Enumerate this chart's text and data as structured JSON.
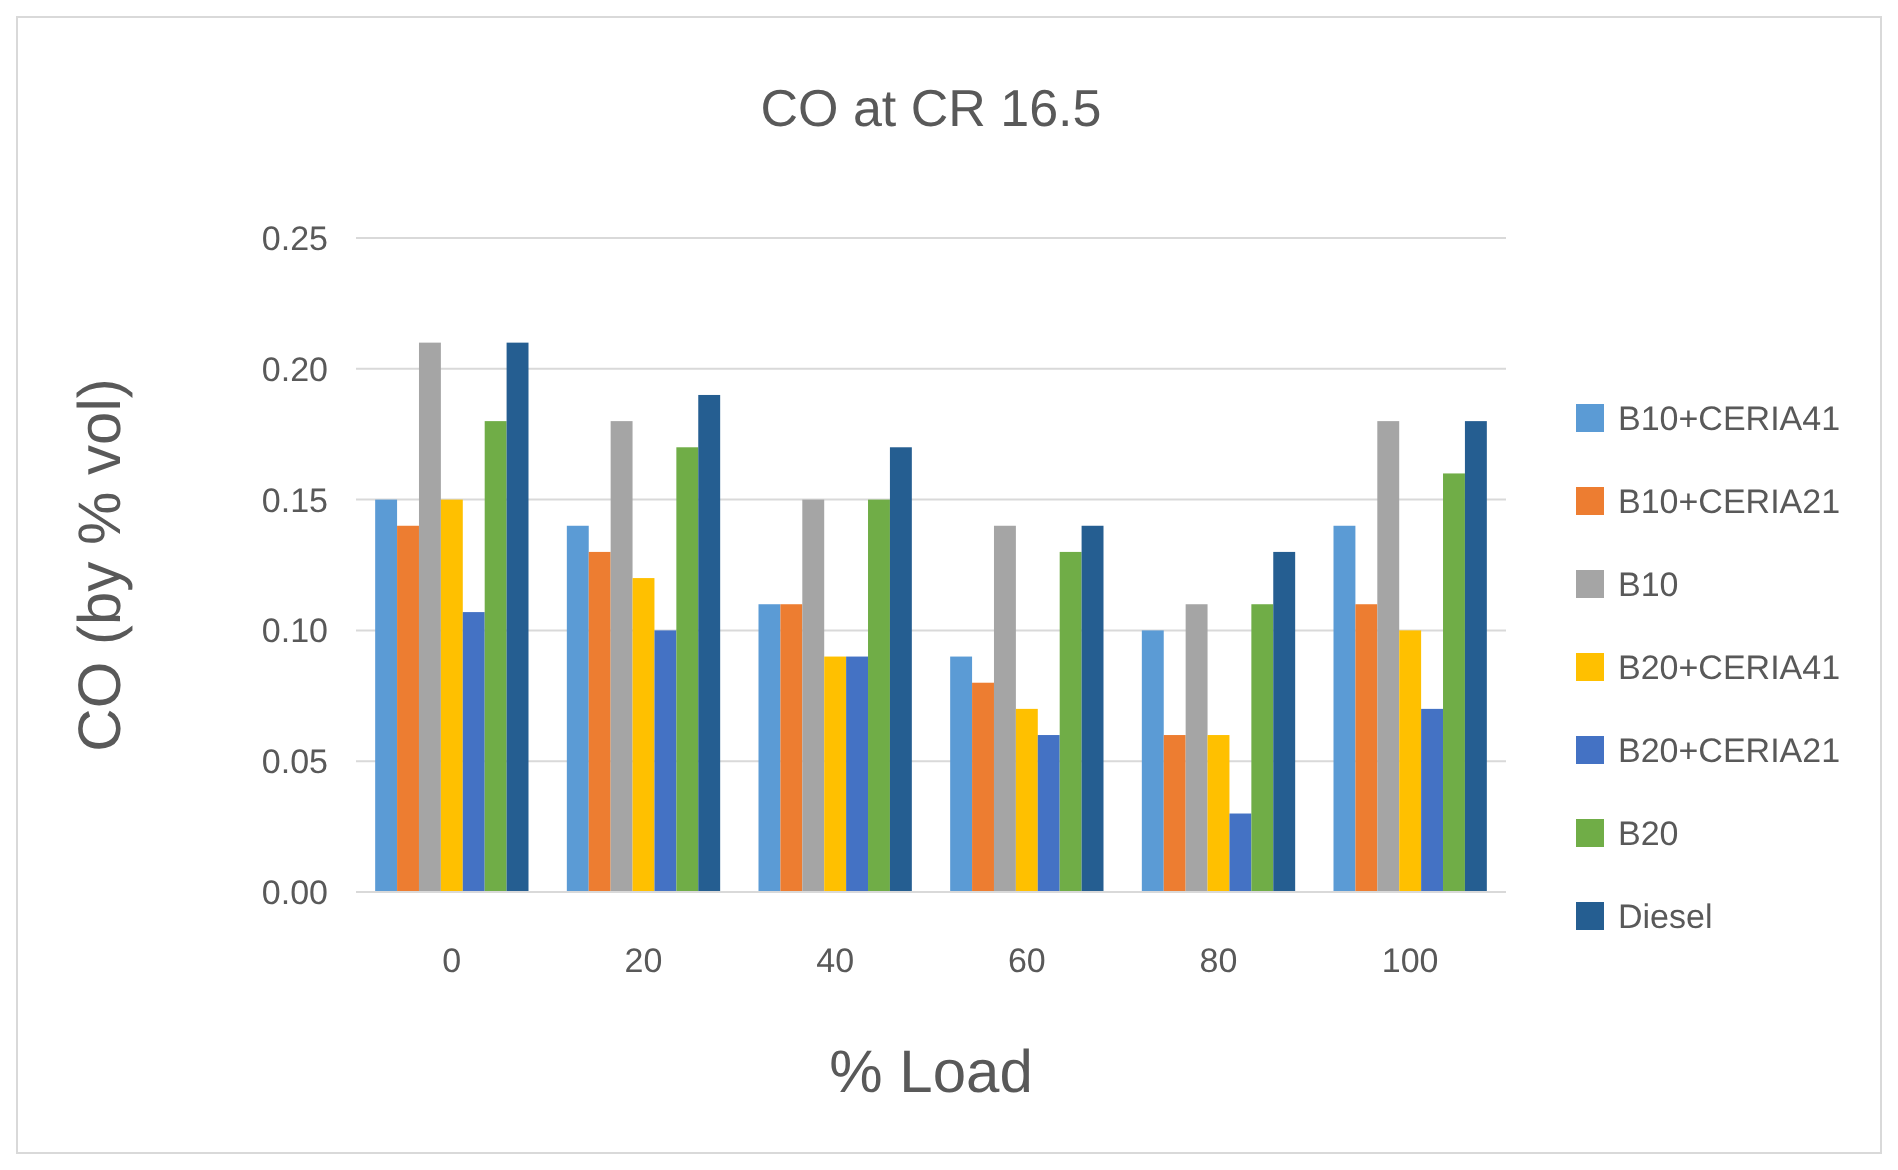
{
  "chart_data": {
    "type": "bar",
    "title": "CO at CR 16.5",
    "xlabel": "% Load",
    "ylabel": "CO (by % vol)",
    "categories": [
      "0",
      "20",
      "40",
      "60",
      "80",
      "100"
    ],
    "series": [
      {
        "name": "B10+CERIA41",
        "color": "#5b9bd5",
        "values": [
          0.15,
          0.14,
          0.11,
          0.09,
          0.1,
          0.14
        ]
      },
      {
        "name": "B10+CERIA21",
        "color": "#ed7d31",
        "values": [
          0.14,
          0.13,
          0.11,
          0.08,
          0.06,
          0.11
        ]
      },
      {
        "name": "B10",
        "color": "#a5a5a5",
        "values": [
          0.21,
          0.18,
          0.15,
          0.14,
          0.11,
          0.18
        ]
      },
      {
        "name": "B20+CERIA41",
        "color": "#ffc000",
        "values": [
          0.15,
          0.12,
          0.09,
          0.07,
          0.06,
          0.1
        ]
      },
      {
        "name": "B20+CERIA21",
        "color": "#4472c4",
        "values": [
          0.107,
          0.1,
          0.09,
          0.06,
          0.03,
          0.07
        ]
      },
      {
        "name": "B20",
        "color": "#70ad47",
        "values": [
          0.18,
          0.17,
          0.15,
          0.13,
          0.11,
          0.16
        ]
      },
      {
        "name": "Diesel",
        "color": "#255e91",
        "values": [
          0.21,
          0.19,
          0.17,
          0.14,
          0.13,
          0.18
        ]
      }
    ],
    "ylim": [
      0,
      0.25
    ],
    "yticks": [
      {
        "value": 0,
        "label": "0.00"
      },
      {
        "value": 0.05,
        "label": "0.05"
      },
      {
        "value": 0.1,
        "label": "0.10"
      },
      {
        "value": 0.15,
        "label": "0.15"
      },
      {
        "value": 0.2,
        "label": "0.20"
      },
      {
        "value": 0.25,
        "label": "0.25"
      }
    ],
    "grid": "y",
    "legend": "right"
  }
}
